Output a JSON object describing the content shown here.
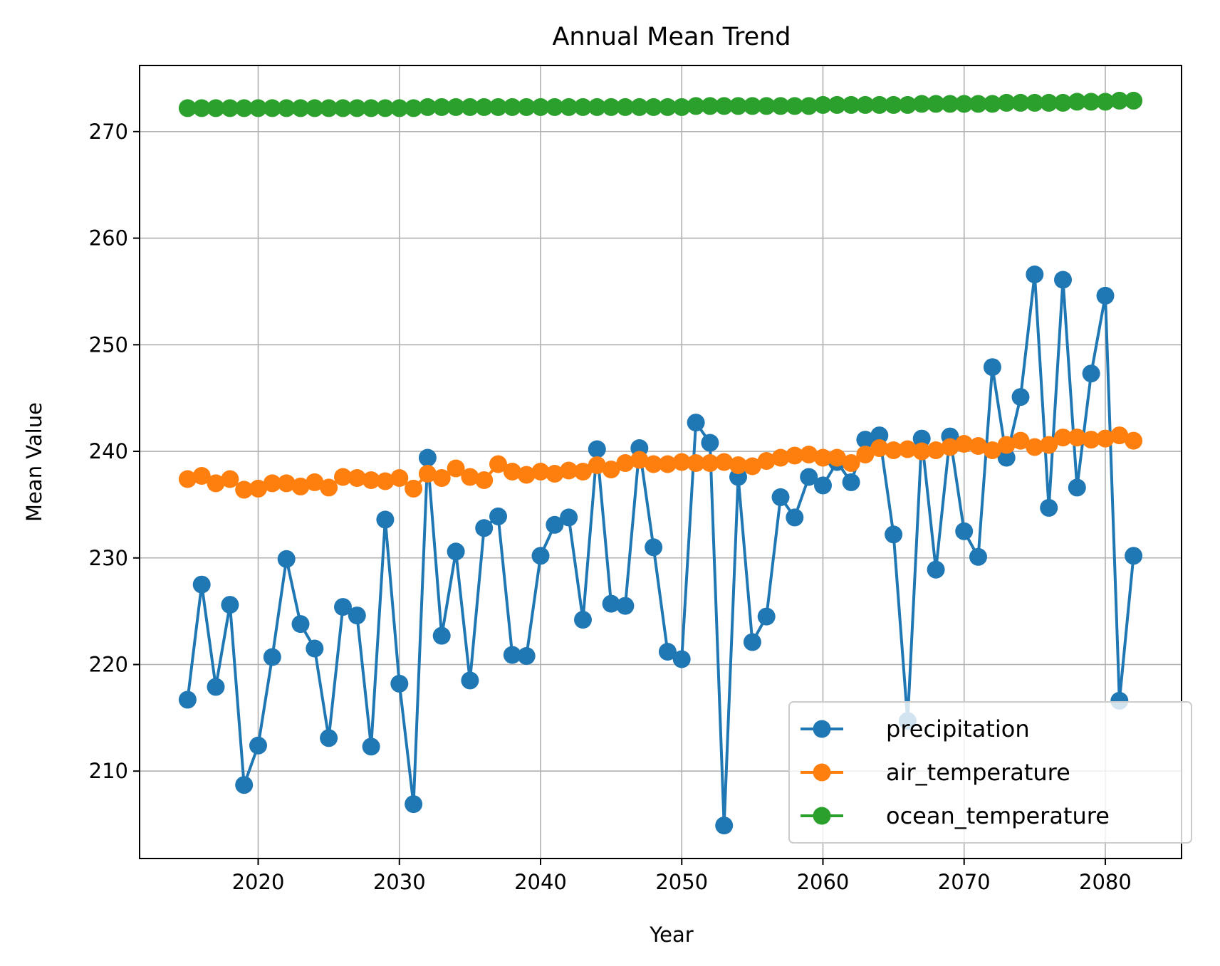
{
  "chart_data": {
    "type": "line",
    "title": "Annual Mean Trend",
    "xlabel": "Year",
    "ylabel": "Mean Value",
    "xlim": [
      2011.6,
      2085.4
    ],
    "ylim": [
      201.8,
      276.2
    ],
    "xticks": [
      2020,
      2030,
      2040,
      2050,
      2060,
      2070,
      2080
    ],
    "yticks": [
      210,
      220,
      230,
      240,
      250,
      260,
      270
    ],
    "grid": true,
    "legend_position": "lower right",
    "x": [
      2015,
      2016,
      2017,
      2018,
      2019,
      2020,
      2021,
      2022,
      2023,
      2024,
      2025,
      2026,
      2027,
      2028,
      2029,
      2030,
      2031,
      2032,
      2033,
      2034,
      2035,
      2036,
      2037,
      2038,
      2039,
      2040,
      2041,
      2042,
      2043,
      2044,
      2045,
      2046,
      2047,
      2048,
      2049,
      2050,
      2051,
      2052,
      2053,
      2054,
      2055,
      2056,
      2057,
      2058,
      2059,
      2060,
      2061,
      2062,
      2063,
      2064,
      2065,
      2066,
      2067,
      2068,
      2069,
      2070,
      2071,
      2072,
      2073,
      2074,
      2075,
      2076,
      2077,
      2078,
      2079,
      2080,
      2081,
      2082
    ],
    "series": [
      {
        "name": "precipitation",
        "color": "#1f77b4",
        "values": [
          216.7,
          227.5,
          217.9,
          225.6,
          208.7,
          212.4,
          220.7,
          229.9,
          223.8,
          221.5,
          213.1,
          225.4,
          224.6,
          212.3,
          233.6,
          218.2,
          206.9,
          239.4,
          222.7,
          230.6,
          218.5,
          232.8,
          233.9,
          220.9,
          220.8,
          230.2,
          233.1,
          233.8,
          224.2,
          240.2,
          225.7,
          225.5,
          240.3,
          231.0,
          221.2,
          220.5,
          242.7,
          240.8,
          204.9,
          237.6,
          222.1,
          224.5,
          235.7,
          233.8,
          237.6,
          236.8,
          239.0,
          237.1,
          241.1,
          241.5,
          232.2,
          214.7,
          241.2,
          228.9,
          241.4,
          232.5,
          230.1,
          247.9,
          239.4,
          245.1,
          256.6,
          234.7,
          256.1,
          236.6,
          247.3,
          254.6,
          216.6,
          230.2
        ]
      },
      {
        "name": "air_temperature",
        "color": "#ff7f0e",
        "values": [
          237.4,
          237.7,
          237.0,
          237.4,
          236.4,
          236.5,
          237.0,
          237.0,
          236.7,
          237.1,
          236.6,
          237.6,
          237.5,
          237.3,
          237.2,
          237.5,
          236.5,
          237.9,
          237.5,
          238.4,
          237.6,
          237.3,
          238.8,
          238.1,
          237.8,
          238.1,
          237.9,
          238.2,
          238.1,
          238.7,
          238.3,
          238.9,
          239.2,
          238.8,
          238.8,
          239.0,
          238.9,
          238.9,
          239.0,
          238.7,
          238.6,
          239.1,
          239.4,
          239.6,
          239.7,
          239.4,
          239.4,
          238.9,
          239.7,
          240.3,
          240.1,
          240.2,
          240.0,
          240.1,
          240.4,
          240.7,
          240.5,
          240.1,
          240.6,
          241.0,
          240.4,
          240.6,
          241.3,
          241.3,
          241.1,
          241.2,
          241.5,
          241.0
        ]
      },
      {
        "name": "ocean_temperature",
        "color": "#2ca02c",
        "values": [
          272.2,
          272.2,
          272.2,
          272.2,
          272.2,
          272.2,
          272.2,
          272.2,
          272.2,
          272.2,
          272.2,
          272.2,
          272.2,
          272.2,
          272.2,
          272.2,
          272.2,
          272.3,
          272.3,
          272.3,
          272.3,
          272.3,
          272.3,
          272.3,
          272.3,
          272.3,
          272.3,
          272.3,
          272.3,
          272.3,
          272.3,
          272.3,
          272.3,
          272.3,
          272.3,
          272.3,
          272.4,
          272.4,
          272.4,
          272.4,
          272.4,
          272.4,
          272.4,
          272.4,
          272.4,
          272.5,
          272.5,
          272.5,
          272.5,
          272.5,
          272.5,
          272.5,
          272.6,
          272.6,
          272.6,
          272.6,
          272.6,
          272.6,
          272.7,
          272.7,
          272.7,
          272.7,
          272.7,
          272.8,
          272.8,
          272.8,
          272.9,
          272.9
        ]
      }
    ]
  }
}
